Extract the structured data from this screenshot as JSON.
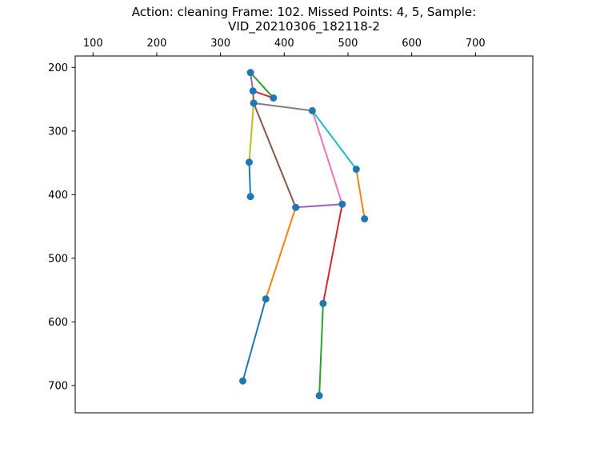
{
  "chart_data": {
    "type": "scatter",
    "title_line1": "Action: cleaning   Frame: 102. Missed Points: 4, 5,  Sample:",
    "title_line2": "VID_20210306_182118-2",
    "xlabel": "",
    "ylabel": "",
    "x_axis_position": "top",
    "y_axis_inverted": true,
    "xlim": [
      72,
      790
    ],
    "ylim": [
      743,
      182
    ],
    "x_ticks": [
      100,
      200,
      300,
      400,
      500,
      600,
      700
    ],
    "y_ticks": [
      200,
      300,
      400,
      500,
      600,
      700
    ],
    "grid": false,
    "legend": "none",
    "point_color": "#1f77b4",
    "points": [
      {
        "id": 0,
        "x": 347,
        "y": 208
      },
      {
        "id": 1,
        "x": 351,
        "y": 237
      },
      {
        "id": 2,
        "x": 383,
        "y": 248
      },
      {
        "id": 3,
        "x": 352,
        "y": 256
      },
      {
        "id": 4,
        "x": 444,
        "y": 268
      },
      {
        "id": 5,
        "x": 513,
        "y": 360
      },
      {
        "id": 6,
        "x": 526,
        "y": 438
      },
      {
        "id": 7,
        "x": 345,
        "y": 349
      },
      {
        "id": 8,
        "x": 347,
        "y": 403
      },
      {
        "id": 9,
        "x": 418,
        "y": 420
      },
      {
        "id": 10,
        "x": 491,
        "y": 415
      },
      {
        "id": 11,
        "x": 371,
        "y": 564
      },
      {
        "id": 12,
        "x": 461,
        "y": 571
      },
      {
        "id": 13,
        "x": 335,
        "y": 693
      },
      {
        "id": 14,
        "x": 455,
        "y": 716
      }
    ],
    "bones": [
      {
        "from": 0,
        "to": 2,
        "color": "#2ca02c"
      },
      {
        "from": 0,
        "to": 1,
        "color": "#9467bd"
      },
      {
        "from": 1,
        "to": 2,
        "color": "#d62728"
      },
      {
        "from": 1,
        "to": 3,
        "color": "#8c564b"
      },
      {
        "from": 3,
        "to": 4,
        "color": "#7f7f7f"
      },
      {
        "from": 3,
        "to": 7,
        "color": "#bcbd22"
      },
      {
        "from": 7,
        "to": 8,
        "color": "#1f77b4"
      },
      {
        "from": 3,
        "to": 9,
        "color": "#8c564b"
      },
      {
        "from": 4,
        "to": 10,
        "color": "#e377c2"
      },
      {
        "from": 4,
        "to": 5,
        "color": "#17becf"
      },
      {
        "from": 5,
        "to": 6,
        "color": "#ff7f0e"
      },
      {
        "from": 9,
        "to": 10,
        "color": "#9467bd"
      },
      {
        "from": 9,
        "to": 11,
        "color": "#ff7f0e"
      },
      {
        "from": 11,
        "to": 13,
        "color": "#1f77b4"
      },
      {
        "from": 10,
        "to": 12,
        "color": "#d62728"
      },
      {
        "from": 12,
        "to": 14,
        "color": "#2ca02c"
      }
    ]
  }
}
